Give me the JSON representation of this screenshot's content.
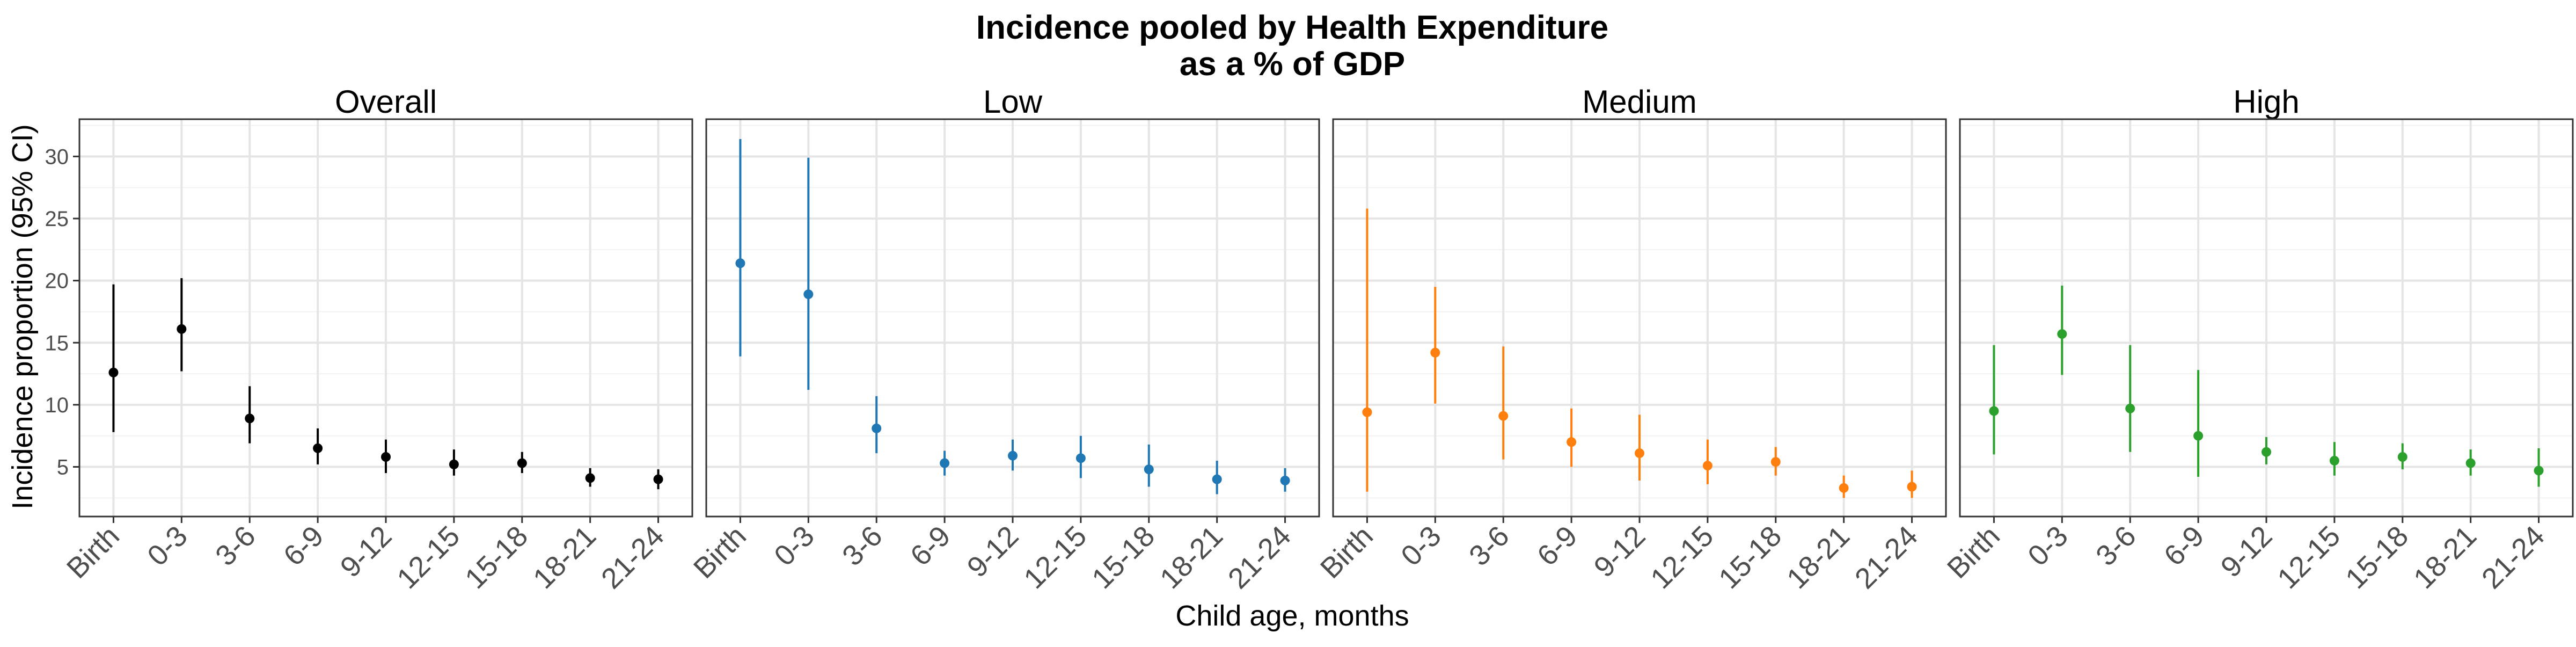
{
  "chart_data": {
    "type": "scatter",
    "title_line1": "Incidence pooled by Health Expenditure",
    "title_line2": "as a % of GDP",
    "xlabel": "Child age, months",
    "ylabel": "Incidence proportion (95% CI)",
    "categories": [
      "Birth",
      "0-3",
      "3-6",
      "6-9",
      "9-12",
      "12-15",
      "15-18",
      "18-21",
      "21-24"
    ],
    "ylim": [
      1,
      33
    ],
    "yticks": [
      5,
      10,
      15,
      20,
      25,
      30
    ],
    "grid": true,
    "panels": [
      {
        "name": "Overall",
        "color": "#000000",
        "points": [
          {
            "x": "Birth",
            "y": 12.6,
            "lo": 7.8,
            "hi": 19.7
          },
          {
            "x": "0-3",
            "y": 16.1,
            "lo": 12.7,
            "hi": 20.2
          },
          {
            "x": "3-6",
            "y": 8.9,
            "lo": 6.9,
            "hi": 11.5
          },
          {
            "x": "6-9",
            "y": 6.5,
            "lo": 5.2,
            "hi": 8.1
          },
          {
            "x": "9-12",
            "y": 5.8,
            "lo": 4.5,
            "hi": 7.2
          },
          {
            "x": "12-15",
            "y": 5.2,
            "lo": 4.3,
            "hi": 6.4
          },
          {
            "x": "15-18",
            "y": 5.3,
            "lo": 4.5,
            "hi": 6.2
          },
          {
            "x": "18-21",
            "y": 4.1,
            "lo": 3.4,
            "hi": 4.9
          },
          {
            "x": "21-24",
            "y": 4.0,
            "lo": 3.2,
            "hi": 4.8
          }
        ]
      },
      {
        "name": "Low",
        "color": "#1f77b4",
        "points": [
          {
            "x": "Birth",
            "y": 21.4,
            "lo": 13.9,
            "hi": 31.4
          },
          {
            "x": "0-3",
            "y": 18.9,
            "lo": 11.2,
            "hi": 29.9
          },
          {
            "x": "3-6",
            "y": 8.1,
            "lo": 6.1,
            "hi": 10.7
          },
          {
            "x": "6-9",
            "y": 5.3,
            "lo": 4.3,
            "hi": 6.3
          },
          {
            "x": "9-12",
            "y": 5.9,
            "lo": 4.7,
            "hi": 7.2
          },
          {
            "x": "12-15",
            "y": 5.7,
            "lo": 4.1,
            "hi": 7.5
          },
          {
            "x": "15-18",
            "y": 4.8,
            "lo": 3.4,
            "hi": 6.8
          },
          {
            "x": "18-21",
            "y": 4.0,
            "lo": 2.8,
            "hi": 5.5
          },
          {
            "x": "21-24",
            "y": 3.9,
            "lo": 3.0,
            "hi": 4.9
          }
        ]
      },
      {
        "name": "Medium",
        "color": "#ff7f0e",
        "points": [
          {
            "x": "Birth",
            "y": 9.4,
            "lo": 3.0,
            "hi": 25.8
          },
          {
            "x": "0-3",
            "y": 14.2,
            "lo": 10.1,
            "hi": 19.5
          },
          {
            "x": "3-6",
            "y": 9.1,
            "lo": 5.6,
            "hi": 14.7
          },
          {
            "x": "6-9",
            "y": 7.0,
            "lo": 5.0,
            "hi": 9.7
          },
          {
            "x": "9-12",
            "y": 6.1,
            "lo": 3.9,
            "hi": 9.2
          },
          {
            "x": "12-15",
            "y": 5.1,
            "lo": 3.6,
            "hi": 7.2
          },
          {
            "x": "15-18",
            "y": 5.4,
            "lo": 4.3,
            "hi": 6.6
          },
          {
            "x": "18-21",
            "y": 3.3,
            "lo": 2.5,
            "hi": 4.3
          },
          {
            "x": "21-24",
            "y": 3.4,
            "lo": 2.5,
            "hi": 4.7
          }
        ]
      },
      {
        "name": "High",
        "color": "#2ca02c",
        "points": [
          {
            "x": "Birth",
            "y": 9.5,
            "lo": 6.0,
            "hi": 14.8
          },
          {
            "x": "0-3",
            "y": 15.7,
            "lo": 12.4,
            "hi": 19.6
          },
          {
            "x": "3-6",
            "y": 9.7,
            "lo": 6.2,
            "hi": 14.8
          },
          {
            "x": "6-9",
            "y": 7.5,
            "lo": 4.2,
            "hi": 12.8
          },
          {
            "x": "9-12",
            "y": 6.2,
            "lo": 5.2,
            "hi": 7.4
          },
          {
            "x": "12-15",
            "y": 5.5,
            "lo": 4.3,
            "hi": 7.0
          },
          {
            "x": "15-18",
            "y": 5.8,
            "lo": 4.8,
            "hi": 6.9
          },
          {
            "x": "18-21",
            "y": 5.3,
            "lo": 4.3,
            "hi": 6.4
          },
          {
            "x": "21-24",
            "y": 4.7,
            "lo": 3.4,
            "hi": 6.5
          }
        ]
      }
    ]
  }
}
